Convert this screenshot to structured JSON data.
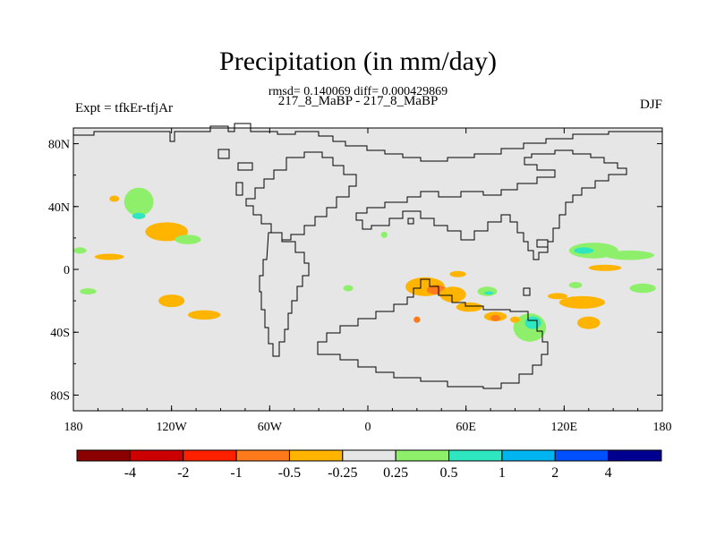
{
  "chart_data": {
    "type": "heatmap",
    "title": "Precipitation (in mm/day)",
    "stats": "rmsd= 0.140069 diff= 0.000429869",
    "subtitle": "217_8_MaBP - 217_8_MaBP",
    "left_label": "Expt = tfkEr-tfjAr",
    "right_label": "DJF",
    "x_ticks": [
      {
        "value": -180,
        "label": "180"
      },
      {
        "value": -120,
        "label": "120W"
      },
      {
        "value": -60,
        "label": "60W"
      },
      {
        "value": 0,
        "label": "0"
      },
      {
        "value": 60,
        "label": "60E"
      },
      {
        "value": 120,
        "label": "120E"
      },
      {
        "value": 180,
        "label": "180"
      }
    ],
    "y_ticks": [
      {
        "value": 80,
        "label": "80N"
      },
      {
        "value": 40,
        "label": "40N"
      },
      {
        "value": 0,
        "label": "0"
      },
      {
        "value": -40,
        "label": "40S"
      },
      {
        "value": -80,
        "label": "80S"
      }
    ],
    "xlim": [
      -180,
      180
    ],
    "ylim": [
      -90,
      90
    ],
    "colorbar": {
      "colors": [
        "#8b0000",
        "#cc0000",
        "#ff2000",
        "#ff7a1a",
        "#ffb400",
        "#e6e6e6",
        "#8ef06a",
        "#2ee6c0",
        "#00b4f0",
        "#0050ff",
        "#000090"
      ],
      "labels": [
        "-4",
        "-2",
        "-1",
        "-0.5",
        "-0.25",
        "0.25",
        "0.5",
        "1",
        "2",
        "4"
      ]
    },
    "anomaly_regions": [
      {
        "lon": -140,
        "lat": 43,
        "rlon": 9,
        "rlat": 9,
        "color": "#8ef06a"
      },
      {
        "lon": -140,
        "lat": 34,
        "rlon": 4,
        "rlat": 2,
        "color": "#2ee6c0"
      },
      {
        "lon": -123,
        "lat": 24,
        "rlon": 13,
        "rlat": 6,
        "color": "#ffb400"
      },
      {
        "lon": -110,
        "lat": 19,
        "rlon": 8,
        "rlat": 3,
        "color": "#8ef06a"
      },
      {
        "lon": -155,
        "lat": 45,
        "rlon": 3,
        "rlat": 2,
        "color": "#ffb400"
      },
      {
        "lon": -158,
        "lat": 8,
        "rlon": 9,
        "rlat": 2,
        "color": "#ffb400"
      },
      {
        "lon": -120,
        "lat": -20,
        "rlon": 8,
        "rlat": 4,
        "color": "#ffb400"
      },
      {
        "lon": -100,
        "lat": -29,
        "rlon": 10,
        "rlat": 3,
        "color": "#ffb400"
      },
      {
        "lon": -171,
        "lat": -14,
        "rlon": 5,
        "rlat": 2,
        "color": "#8ef06a"
      },
      {
        "lon": -176,
        "lat": 12,
        "rlon": 4,
        "rlat": 2,
        "color": "#8ef06a"
      },
      {
        "lon": 35,
        "lat": -11,
        "rlon": 12,
        "rlat": 6,
        "color": "#ffb400"
      },
      {
        "lon": 42,
        "lat": -13,
        "rlon": 6,
        "rlat": 3,
        "color": "#ff7a1a"
      },
      {
        "lon": 52,
        "lat": -16,
        "rlon": 8,
        "rlat": 5,
        "color": "#ffb400"
      },
      {
        "lon": 62,
        "lat": -24,
        "rlon": 8,
        "rlat": 3,
        "color": "#ffb400"
      },
      {
        "lon": 78,
        "lat": -30,
        "rlon": 7,
        "rlat": 3,
        "color": "#ffb400"
      },
      {
        "lon": 78,
        "lat": -31,
        "rlon": 3,
        "rlat": 2,
        "color": "#ff7a1a"
      },
      {
        "lon": 73,
        "lat": -14,
        "rlon": 6,
        "rlat": 3,
        "color": "#8ef06a"
      },
      {
        "lon": 74,
        "lat": -15,
        "rlon": 3,
        "rlat": 1,
        "color": "#2ee6c0"
      },
      {
        "lon": 99,
        "lat": -37,
        "rlon": 10,
        "rlat": 9,
        "color": "#8ef06a"
      },
      {
        "lon": 101,
        "lat": -34,
        "rlon": 5,
        "rlat": 4,
        "color": "#2ee6c0"
      },
      {
        "lon": 131,
        "lat": -21,
        "rlon": 14,
        "rlat": 4,
        "color": "#ffb400"
      },
      {
        "lon": 135,
        "lat": -34,
        "rlon": 7,
        "rlat": 4,
        "color": "#ffb400"
      },
      {
        "lon": 116,
        "lat": -17,
        "rlon": 6,
        "rlat": 2,
        "color": "#ffb400"
      },
      {
        "lon": 138,
        "lat": 12,
        "rlon": 15,
        "rlat": 5,
        "color": "#8ef06a"
      },
      {
        "lon": 132,
        "lat": 12,
        "rlon": 6,
        "rlat": 2,
        "color": "#2ee6c0"
      },
      {
        "lon": 160,
        "lat": 9,
        "rlon": 15,
        "rlat": 3,
        "color": "#8ef06a"
      },
      {
        "lon": 145,
        "lat": 1,
        "rlon": 10,
        "rlat": 2,
        "color": "#ffb400"
      },
      {
        "lon": 168,
        "lat": -12,
        "rlon": 8,
        "rlat": 3,
        "color": "#8ef06a"
      },
      {
        "lon": 55,
        "lat": -3,
        "rlon": 5,
        "rlat": 2,
        "color": "#ffb400"
      },
      {
        "lon": 30,
        "lat": -32,
        "rlon": 2,
        "rlat": 2,
        "color": "#ff7a1a"
      },
      {
        "lon": -12,
        "lat": -12,
        "rlon": 3,
        "rlat": 2,
        "color": "#8ef06a"
      },
      {
        "lon": 10,
        "lat": 22,
        "rlon": 2,
        "rlat": 2,
        "color": "#8ef06a"
      },
      {
        "lon": 90,
        "lat": -32,
        "rlon": 3,
        "rlat": 2,
        "color": "#ffb400"
      },
      {
        "lon": 127,
        "lat": -10,
        "rlon": 4,
        "rlat": 2,
        "color": "#8ef06a"
      }
    ]
  }
}
